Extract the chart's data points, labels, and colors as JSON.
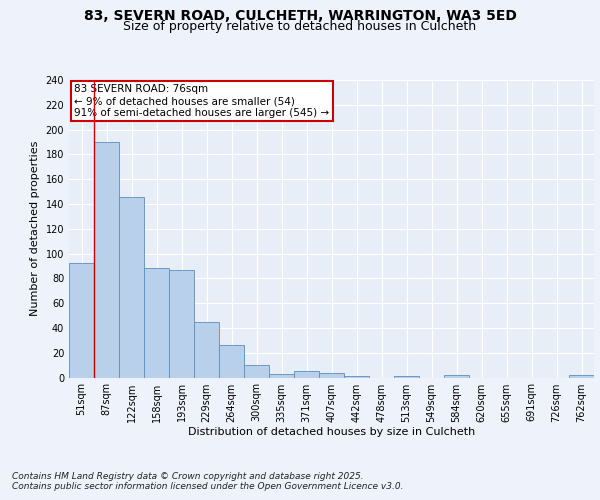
{
  "title_line1": "83, SEVERN ROAD, CULCHETH, WARRINGTON, WA3 5ED",
  "title_line2": "Size of property relative to detached houses in Culcheth",
  "xlabel": "Distribution of detached houses by size in Culcheth",
  "ylabel": "Number of detached properties",
  "bar_color": "#b8d0ea",
  "bar_edge_color": "#5a8fc0",
  "bg_color": "#e8eef8",
  "grid_color": "#ffffff",
  "tick_labels": [
    "51sqm",
    "87sqm",
    "122sqm",
    "158sqm",
    "193sqm",
    "229sqm",
    "264sqm",
    "300sqm",
    "335sqm",
    "371sqm",
    "407sqm",
    "442sqm",
    "478sqm",
    "513sqm",
    "549sqm",
    "584sqm",
    "620sqm",
    "655sqm",
    "691sqm",
    "726sqm",
    "762sqm"
  ],
  "bar_heights": [
    92,
    190,
    146,
    88,
    87,
    45,
    26,
    10,
    3,
    5,
    4,
    1,
    0,
    1,
    0,
    2,
    0,
    0,
    0,
    0,
    2
  ],
  "ylim": [
    0,
    240
  ],
  "yticks": [
    0,
    20,
    40,
    60,
    80,
    100,
    120,
    140,
    160,
    180,
    200,
    220,
    240
  ],
  "annotation_line1": "83 SEVERN ROAD: 76sqm",
  "annotation_line2": "← 9% of detached houses are smaller (54)",
  "annotation_line3": "91% of semi-detached houses are larger (545) →",
  "footer_line1": "Contains HM Land Registry data © Crown copyright and database right 2025.",
  "footer_line2": "Contains public sector information licensed under the Open Government Licence v3.0.",
  "title_fontsize": 10,
  "subtitle_fontsize": 9,
  "axis_label_fontsize": 8,
  "tick_fontsize": 7,
  "annotation_fontsize": 7.5,
  "footer_fontsize": 6.5,
  "fig_bg": "#eef2fa"
}
